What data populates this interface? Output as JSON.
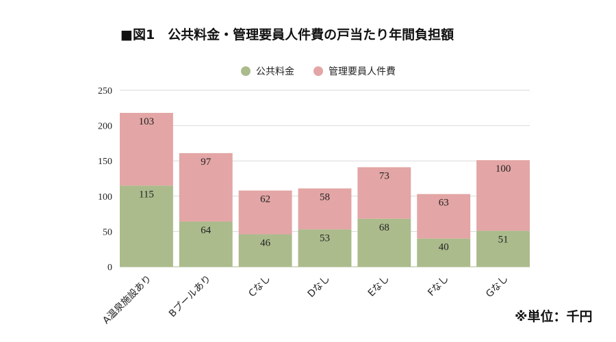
{
  "title": "■図1　公共料金・管理要員人件費の戸当たり年間負担額",
  "note": "※単位：千円",
  "chart_data": {
    "type": "bar",
    "stacked": true,
    "categories": [
      "A温泉施設あり",
      "Bプールあり",
      "Cなし",
      "Dなし",
      "Eなし",
      "Fなし",
      "Gなし"
    ],
    "series": [
      {
        "name": "公共料金",
        "color": "#abbb8c",
        "values": [
          115,
          64,
          46,
          53,
          68,
          40,
          51
        ]
      },
      {
        "name": "管理要員人件費",
        "color": "#e3a5a5",
        "values": [
          103,
          97,
          62,
          58,
          73,
          63,
          100
        ]
      }
    ],
    "ylim": [
      0,
      250
    ],
    "yticks": [
      0,
      50,
      100,
      150,
      200,
      250
    ],
    "grid": true,
    "legend": "top"
  }
}
